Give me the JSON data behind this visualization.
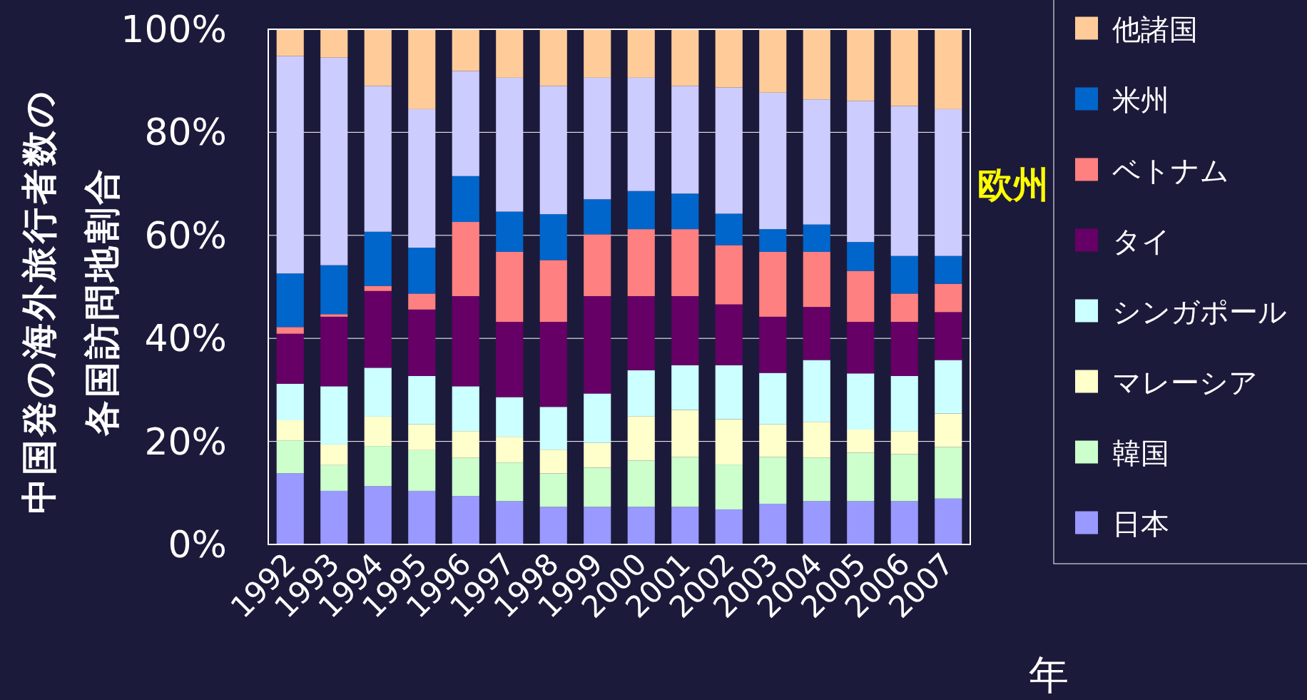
{
  "chart_data": {
    "type": "bar",
    "stacked": true,
    "ylabel": "中国発の海外旅行者数の各国訪問地割合",
    "xlabel": "年",
    "categories": [
      "1992",
      "1993",
      "1994",
      "1995",
      "1996",
      "1997",
      "1998",
      "1999",
      "2000",
      "2001",
      "2002",
      "2003",
      "2004",
      "2005",
      "2006",
      "2007"
    ],
    "ylim": [
      0,
      100
    ],
    "yticks": [
      {
        "value": 0,
        "label": "0%"
      },
      {
        "value": 20,
        "label": "20%"
      },
      {
        "value": 40,
        "label": "40%"
      },
      {
        "value": 60,
        "label": "60%"
      },
      {
        "value": 80,
        "label": "80%"
      },
      {
        "value": 100,
        "label": "100%"
      }
    ],
    "grid": "y",
    "legend": "right",
    "annotations": [
      "欧州"
    ],
    "series": [
      {
        "name": "日本",
        "color": "#9999ff",
        "values": [
          13.8,
          10.4,
          11.3,
          10.4,
          9.4,
          8.4,
          7.3,
          7.3,
          7.3,
          7.3,
          6.8,
          7.9,
          8.4,
          8.4,
          8.4,
          8.9
        ]
      },
      {
        "name": "韓国",
        "color": "#ccffcc",
        "values": [
          6.4,
          5.0,
          7.8,
          7.9,
          7.4,
          7.5,
          6.5,
          7.6,
          9.0,
          9.7,
          8.7,
          9.1,
          8.4,
          9.4,
          9.1,
          10.0
        ]
      },
      {
        "name": "マレーシア",
        "color": "#ffffcc",
        "values": [
          3.9,
          4.0,
          5.7,
          5.0,
          5.2,
          5.0,
          4.6,
          4.8,
          8.6,
          9.1,
          8.8,
          6.3,
          7.0,
          4.5,
          4.5,
          6.5
        ]
      },
      {
        "name": "シンガポール",
        "color": "#ccffff",
        "values": [
          7.1,
          11.3,
          9.5,
          9.4,
          8.7,
          7.7,
          8.3,
          9.6,
          8.9,
          8.7,
          10.5,
          10.0,
          12.0,
          10.9,
          10.7,
          10.4
        ]
      },
      {
        "name": "タイ",
        "color": "#660066",
        "values": [
          9.7,
          13.5,
          14.9,
          12.9,
          17.5,
          14.6,
          16.5,
          18.9,
          14.4,
          13.4,
          11.8,
          10.9,
          10.3,
          10.0,
          10.5,
          9.3
        ]
      },
      {
        "name": "ベトナム",
        "color": "#ff8080",
        "values": [
          1.3,
          0.5,
          1.0,
          3.1,
          14.4,
          13.6,
          12.0,
          12.0,
          13.0,
          13.0,
          11.5,
          12.6,
          10.7,
          9.9,
          5.5,
          5.5
        ]
      },
      {
        "name": "米州",
        "color": "#0066cc",
        "values": [
          10.4,
          9.5,
          10.5,
          8.9,
          8.9,
          7.8,
          8.9,
          6.8,
          7.4,
          6.9,
          6.1,
          4.4,
          5.3,
          5.6,
          7.3,
          5.4
        ]
      },
      {
        "color": "#ccccff",
        "values": [
          42.2,
          40.3,
          28.3,
          26.9,
          20.4,
          26.0,
          24.9,
          23.6,
          22.0,
          20.9,
          24.5,
          26.5,
          24.3,
          27.4,
          29.1,
          28.5
        ]
      },
      {
        "name": "他諸国",
        "color": "#ffcc99",
        "values": [
          5.2,
          5.5,
          11.0,
          15.5,
          8.1,
          9.4,
          11.0,
          9.4,
          9.4,
          11.0,
          11.3,
          12.3,
          13.6,
          13.9,
          14.9,
          15.5
        ]
      }
    ]
  }
}
